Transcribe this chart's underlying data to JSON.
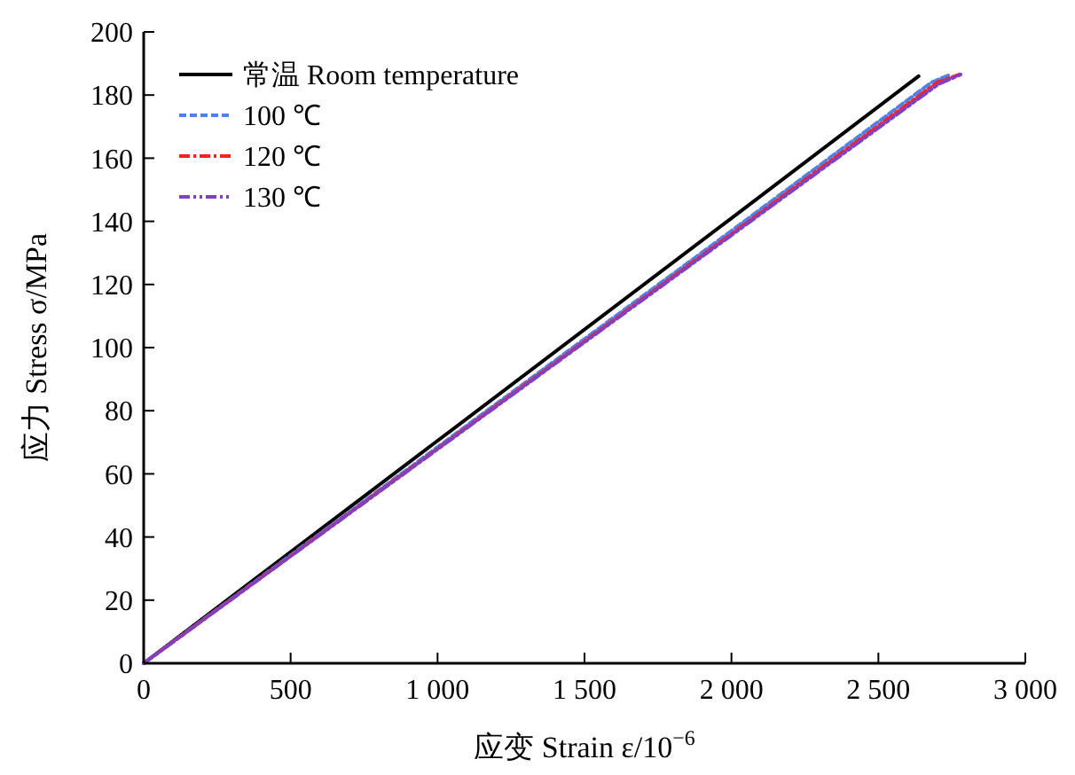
{
  "chart_data": {
    "type": "line",
    "xlabel": "应变 Strain ε/10$^{−6}$",
    "ylabel": "应力 Stress σ/MPa",
    "xlim": [
      0,
      3000
    ],
    "xticks": [
      0,
      500,
      {
        "value": 1000,
        "label": "1 000"
      },
      {
        "value": 1500,
        "label": "1 500"
      },
      {
        "value": 2000,
        "label": "2 000"
      },
      {
        "value": 2500,
        "label": "2 500"
      },
      {
        "value": 3000,
        "label": "3 000"
      }
    ],
    "ylim": [
      0,
      200
    ],
    "yticks": [
      0,
      20,
      40,
      60,
      80,
      100,
      120,
      140,
      160,
      180,
      200
    ],
    "grid": false,
    "legend": "top left",
    "series": [
      {
        "name": "常温 Room temperature",
        "color": "#000000",
        "line_style": "solid",
        "x": [
          0,
          1000,
          2000,
          2637
        ],
        "values": [
          0,
          70.5,
          141,
          186
        ]
      },
      {
        "name": "100 ℃",
        "color": "#4f81e8",
        "line_style": "dashed",
        "x": [
          0,
          1000,
          2000,
          2680,
          2745
        ],
        "values": [
          0,
          68.5,
          137,
          184,
          186.5
        ]
      },
      {
        "name": "120 ℃",
        "color": "#ff2020",
        "line_style": "dashdot",
        "x": [
          0,
          1000,
          2000,
          2700,
          2775
        ],
        "values": [
          0,
          68,
          136,
          184,
          186.5
        ]
      },
      {
        "name": "130 ℃",
        "color": "#8040c0",
        "line_style": "dashdotdot",
        "x": [
          0,
          1000,
          2000,
          2705,
          2780
        ],
        "values": [
          0,
          67.8,
          135.6,
          183.5,
          186.5
        ]
      }
    ]
  }
}
